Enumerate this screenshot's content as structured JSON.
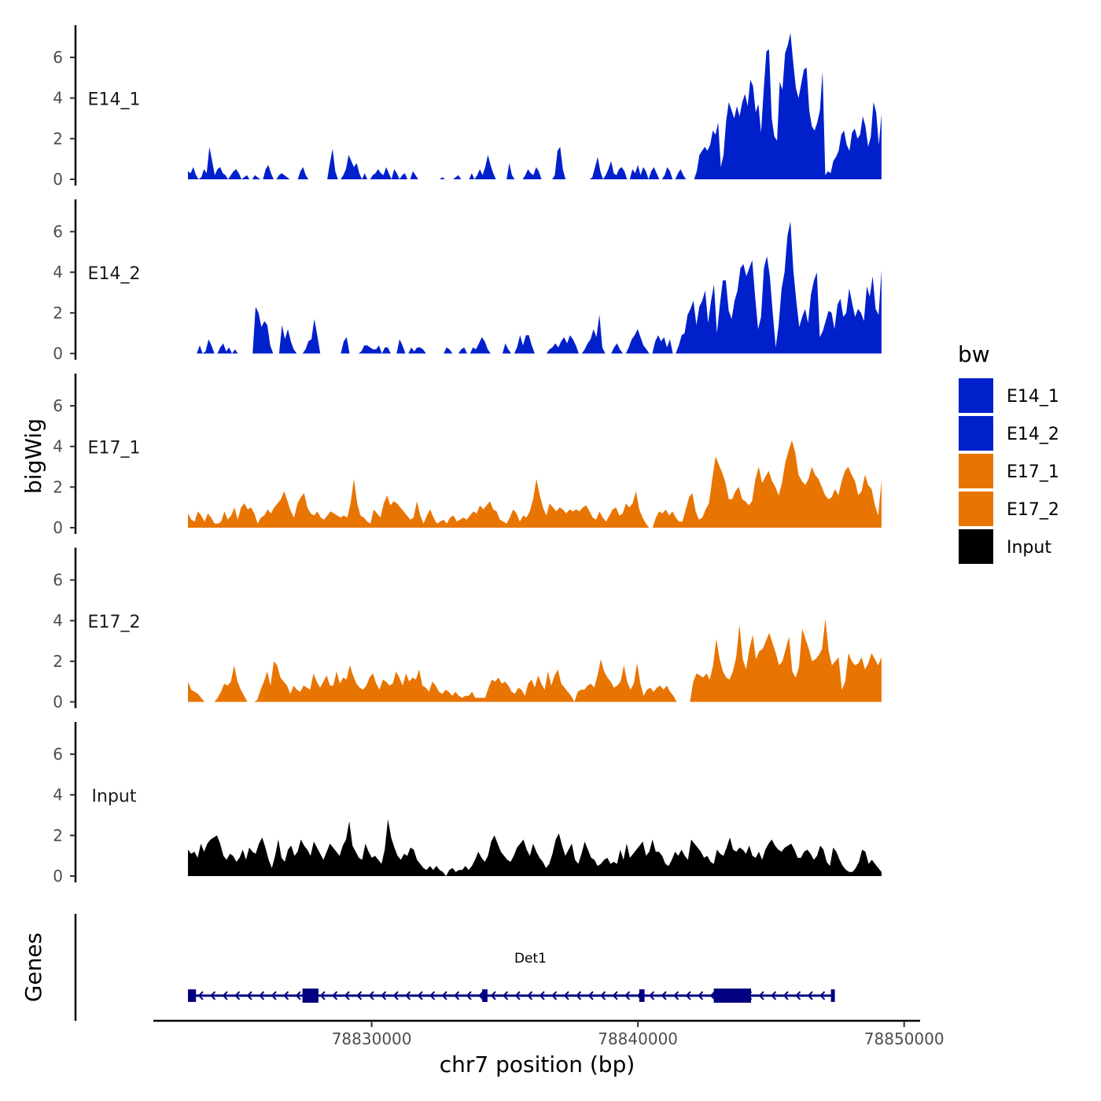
{
  "chart_data": {
    "type": "area",
    "title": "",
    "xlabel": "chr7 position (bp)",
    "ylabel": "bigWig",
    "genes_label": "Genes",
    "x_range": [
      78821800,
      78850600
    ],
    "x_ticks": [
      78830000,
      78840000,
      78850000
    ],
    "x_tick_labels": [
      "78830000",
      "78840000",
      "78850000"
    ],
    "ylim": [
      0,
      7.5
    ],
    "y_ticks": [
      0,
      2,
      4,
      6
    ],
    "y_tick_labels": [
      "0",
      "2",
      "4",
      "6"
    ],
    "track_start": 78823100,
    "track_end": 78849150,
    "legend": {
      "title": "bw",
      "entries": [
        {
          "name": "E14_1",
          "color": "#0020CC"
        },
        {
          "name": "E14_2",
          "color": "#0020CC"
        },
        {
          "name": "E17_1",
          "color": "#E87502"
        },
        {
          "name": "E17_2",
          "color": "#E87502"
        },
        {
          "name": "Input",
          "color": "#000000"
        }
      ]
    },
    "series": [
      {
        "name": "E14_1",
        "label": "E14_1",
        "color": "#0020CC",
        "values": [
          0.4,
          0.3,
          0.6,
          0.2,
          0,
          0.1,
          0.5,
          0.3,
          1.6,
          0.9,
          0.2,
          0.5,
          0.6,
          0.3,
          0.2,
          0,
          0.2,
          0.4,
          0.5,
          0.3,
          0,
          0.1,
          0.2,
          0,
          0,
          0.2,
          0.1,
          0,
          0,
          0.5,
          0.7,
          0.3,
          0,
          0,
          0.2,
          0.3,
          0.2,
          0.1,
          0,
          0,
          0,
          0,
          0.4,
          0.6,
          0.2,
          0,
          0,
          0,
          0,
          0,
          0,
          0,
          0,
          0.8,
          1.5,
          0.4,
          0,
          0,
          0.2,
          0.5,
          1.2,
          0.9,
          0.6,
          0.8,
          0.3,
          0,
          0.3,
          0,
          0,
          0.2,
          0.3,
          0.5,
          0.3,
          0.2,
          0.6,
          0.3,
          0,
          0.5,
          0.3,
          0,
          0.2,
          0.3,
          0,
          0,
          0.4,
          0.2,
          0,
          0,
          0,
          0,
          0,
          0,
          0,
          0,
          0,
          0.1,
          0,
          0,
          0,
          0,
          0.1,
          0.2,
          0,
          0,
          0,
          0,
          0.3,
          0,
          0.2,
          0.5,
          0.2,
          0.6,
          1.2,
          0.7,
          0.3,
          0,
          0,
          0,
          0,
          0,
          0.8,
          0.2,
          0,
          0,
          0,
          0,
          0.2,
          0.5,
          0.3,
          0.2,
          0.6,
          0.4,
          0,
          0,
          0,
          0,
          0,
          0.2,
          1.4,
          1.6,
          0.5,
          0,
          0,
          0,
          0,
          0,
          0,
          0,
          0,
          0,
          0,
          0.1,
          0.6,
          1.1,
          0.4,
          0,
          0.2,
          0.5,
          0.9,
          0.3,
          0.2,
          0.5,
          0.6,
          0.4,
          0,
          0,
          0.5,
          0.3,
          0.7,
          0.2,
          0.6,
          0.4,
          0,
          0.4,
          0.6,
          0.3,
          0,
          0,
          0.2,
          0.6,
          0.4,
          0,
          0,
          0.3,
          0.5,
          0.2,
          0,
          0,
          0,
          0,
          0.4,
          1.2,
          1.4,
          1.6,
          1.4,
          1.7,
          2.4,
          2.2,
          2.8,
          0.6,
          1.2,
          2.9,
          3.8,
          3.4,
          3.0,
          3.6,
          3.1,
          3.8,
          4.2,
          3.6,
          4.9,
          4.6,
          3.3,
          3.7,
          2.3,
          4.4,
          6.3,
          6.4,
          3.0,
          2.1,
          1.9,
          4.8,
          4.4,
          6.2,
          6.6,
          7.2,
          5.8,
          4.5,
          4.0,
          4.7,
          5.4,
          5.5,
          3.4,
          2.6,
          2.4,
          2.8,
          3.4,
          5.3,
          0.2,
          0.4,
          0.3,
          0.9,
          1.1,
          1.4,
          2.2,
          2.4,
          1.7,
          1.4,
          2.3,
          2.5,
          2.0,
          2.2,
          3.1,
          2.6,
          1.6,
          2.1,
          3.8,
          3.3,
          1.7,
          3.2
        ]
      },
      {
        "name": "E14_2",
        "label": "E14_2",
        "color": "#0020CC",
        "values": [
          0,
          0,
          0,
          0,
          0.4,
          0,
          0.1,
          0.7,
          0.4,
          0,
          0,
          0.3,
          0.5,
          0.1,
          0.3,
          0,
          0.2,
          0,
          0,
          0,
          0,
          0,
          0,
          2.3,
          2.0,
          1.3,
          1.6,
          1.4,
          0.4,
          0,
          0,
          0,
          1.4,
          0.7,
          1.2,
          0.6,
          0.2,
          0,
          0,
          0,
          0.2,
          0.6,
          0.7,
          1.7,
          0.9,
          0,
          0,
          0,
          0,
          0,
          0,
          0,
          0,
          0.6,
          0.8,
          0,
          0,
          0,
          0,
          0.1,
          0.4,
          0.4,
          0.3,
          0.2,
          0.2,
          0.4,
          0,
          0.3,
          0.3,
          0,
          0,
          0,
          0.7,
          0.4,
          0,
          0,
          0.3,
          0.1,
          0.3,
          0.3,
          0.2,
          0,
          0,
          0,
          0,
          0,
          0,
          0,
          0.3,
          0.2,
          0,
          0,
          0,
          0.2,
          0.3,
          0,
          0,
          0.3,
          0.2,
          0.5,
          0.8,
          0.6,
          0.2,
          0,
          0,
          0,
          0,
          0,
          0.5,
          0.2,
          0,
          0,
          0.3,
          0.9,
          0.4,
          0.9,
          0.9,
          0.4,
          0,
          0,
          0,
          0,
          0,
          0.2,
          0.3,
          0.5,
          0.3,
          0.6,
          0.8,
          0.5,
          0.9,
          0.7,
          0.4,
          0,
          0,
          0.2,
          0.5,
          0.7,
          1.2,
          0.8,
          1.9,
          0.3,
          0,
          0,
          0,
          0.3,
          0.5,
          0.2,
          0,
          0,
          0.3,
          0.7,
          0.9,
          1.2,
          0.8,
          0.4,
          0.2,
          0,
          0,
          0.6,
          0.9,
          0.6,
          0.8,
          0.3,
          0.7,
          0,
          0,
          0.4,
          0.9,
          1.0,
          1.9,
          2.2,
          2.6,
          1.4,
          2.3,
          2.6,
          3.1,
          1.5,
          2.6,
          3.4,
          1.0,
          2.4,
          3.6,
          3.6,
          2.1,
          1.7,
          2.6,
          3.1,
          4.2,
          4.4,
          3.8,
          4.2,
          4.6,
          2.8,
          1.2,
          1.8,
          4.2,
          4.8,
          3.8,
          2.0,
          0.3,
          1.4,
          3.2,
          4.0,
          5.8,
          6.5,
          4.1,
          2.6,
          1.3,
          1.8,
          2.2,
          1.5,
          2.9,
          3.6,
          4.0,
          0.8,
          1.1,
          1.6,
          2.1,
          2.0,
          1.2,
          2.4,
          2.7,
          1.8,
          2.0,
          3.2,
          2.5,
          1.8,
          2.2,
          2.0,
          1.6,
          3.3,
          2.8,
          3.8,
          2.2,
          1.9,
          4.1
        ]
      },
      {
        "name": "E17_1",
        "label": "E17_1",
        "color": "#E87502",
        "values": [
          0.7,
          0.4,
          0.3,
          0.8,
          0.6,
          0.3,
          0.7,
          0.5,
          0.2,
          0.2,
          0.3,
          0.8,
          0.4,
          0.6,
          1.0,
          0.4,
          1.0,
          1.2,
          0.9,
          1.0,
          0.7,
          0.2,
          0.5,
          0.6,
          0.9,
          0.7,
          1.0,
          1.2,
          1.4,
          1.8,
          1.3,
          0.8,
          0.5,
          1.2,
          1.5,
          1.7,
          1.0,
          0.7,
          0.6,
          0.8,
          0.5,
          0.4,
          0.6,
          0.8,
          0.7,
          0.6,
          0.5,
          0.6,
          0.5,
          1.2,
          2.4,
          1.2,
          0.6,
          0.5,
          0.3,
          0.2,
          0.9,
          0.7,
          0.5,
          1.2,
          1.6,
          1.1,
          1.3,
          1.2,
          1.0,
          0.8,
          0.6,
          0.4,
          0.5,
          1.3,
          0.6,
          0.2,
          0.6,
          0.9,
          0.5,
          0.2,
          0.3,
          0.4,
          0.2,
          0.5,
          0.6,
          0.3,
          0.4,
          0.5,
          0.4,
          0.6,
          0.8,
          0.7,
          1.1,
          0.9,
          1.1,
          1.3,
          0.9,
          0.8,
          0.4,
          0.3,
          0.2,
          0.5,
          0.9,
          0.7,
          0.3,
          0.6,
          0.5,
          0.8,
          1.4,
          2.4,
          1.6,
          1.0,
          0.6,
          1.2,
          1.0,
          0.8,
          1.0,
          0.9,
          0.7,
          0.9,
          0.8,
          0.9,
          0.8,
          1.0,
          1.1,
          0.8,
          0.5,
          0.4,
          0.8,
          0.5,
          0.3,
          0.6,
          0.9,
          1.0,
          0.6,
          0.7,
          1.2,
          1.0,
          1.2,
          1.8,
          0.9,
          0.5,
          0.2,
          0,
          0,
          0.5,
          0.8,
          0.7,
          0.9,
          0.6,
          0.8,
          0.5,
          0.3,
          0.3,
          0.9,
          1.5,
          1.7,
          0.8,
          0.4,
          0.5,
          0.9,
          1.2,
          2.4,
          3.5,
          3.1,
          2.7,
          2.2,
          1.4,
          1.4,
          1.8,
          2.0,
          1.4,
          1.3,
          1.1,
          1.3,
          2.4,
          3.0,
          2.2,
          2.5,
          2.8,
          2.3,
          2.0,
          1.6,
          2.2,
          3.2,
          3.8,
          4.3,
          3.7,
          2.6,
          2.3,
          2.1,
          2.4,
          3.0,
          2.6,
          2.4,
          2.0,
          1.6,
          1.4,
          1.5,
          1.9,
          1.6,
          2.3,
          2.8,
          3.0,
          2.6,
          2.3,
          1.6,
          1.8,
          2.6,
          2.1,
          1.9,
          1.1,
          0.6,
          2.3
        ]
      },
      {
        "name": "E17_2",
        "label": "E17_2",
        "color": "#E87502",
        "values": [
          1.0,
          0.6,
          0.5,
          0.4,
          0.2,
          0,
          0,
          0,
          0,
          0.2,
          0.5,
          0.9,
          0.8,
          1.0,
          1.8,
          1.0,
          0.6,
          0.3,
          0,
          0,
          0,
          0.1,
          0.6,
          1.0,
          1.5,
          0.8,
          2.0,
          1.8,
          1.2,
          1.0,
          0.8,
          0.4,
          0.8,
          0.6,
          0.5,
          0.8,
          0.7,
          0.6,
          1.4,
          1.0,
          0.7,
          1.0,
          1.3,
          0.8,
          0.8,
          1.5,
          0.9,
          1.2,
          1.1,
          1.8,
          1.3,
          0.9,
          0.7,
          0.6,
          0.8,
          1.2,
          1.4,
          0.9,
          0.6,
          1.1,
          1.0,
          0.8,
          0.9,
          1.5,
          1.2,
          0.8,
          1.4,
          1.0,
          1.2,
          1.1,
          1.6,
          0.8,
          0.7,
          0.5,
          1.0,
          0.8,
          0.5,
          0.4,
          0.6,
          0.5,
          0.3,
          0.5,
          0.3,
          0.2,
          0.3,
          0.3,
          0.5,
          0.2,
          0.2,
          0.2,
          0.2,
          0.7,
          1.1,
          1.0,
          1.2,
          0.9,
          1.0,
          0.8,
          0.5,
          0.4,
          0.7,
          0.6,
          0.3,
          0.9,
          1.1,
          0.7,
          1.3,
          0.9,
          0.6,
          1.5,
          0.8,
          1.3,
          1.6,
          0.9,
          0.7,
          0.5,
          0.3,
          0,
          0.5,
          0.6,
          0.6,
          0.8,
          0.9,
          0.7,
          1.3,
          2.1,
          1.5,
          1.2,
          1.0,
          0.7,
          0.8,
          1.0,
          1.8,
          1.0,
          0.6,
          0.9,
          1.9,
          0.9,
          0.3,
          0.6,
          0.7,
          0.5,
          0.7,
          0.8,
          0.6,
          0.8,
          0.5,
          0.3,
          0,
          0,
          0,
          0,
          0,
          1.0,
          1.4,
          1.3,
          1.2,
          1.4,
          1.1,
          1.8,
          3.1,
          2.1,
          1.5,
          1.2,
          1.1,
          1.5,
          2.2,
          3.8,
          2.1,
          1.6,
          2.6,
          3.3,
          2.1,
          2.5,
          2.6,
          3.0,
          3.4,
          2.9,
          2.4,
          1.8,
          2.0,
          2.6,
          3.2,
          1.5,
          1.2,
          1.7,
          3.6,
          3.1,
          2.6,
          2.0,
          2.1,
          2.3,
          2.6,
          4.1,
          2.5,
          1.8,
          2.0,
          2.2,
          0.6,
          1.0,
          2.4,
          2.0,
          1.8,
          1.9,
          2.2,
          1.6,
          1.9,
          2.4,
          2.1,
          1.8,
          2.2
        ]
      },
      {
        "name": "Input",
        "label": "Input",
        "color": "#000000",
        "values": [
          1.3,
          1.1,
          1.2,
          0.9,
          1.6,
          1.2,
          1.6,
          1.8,
          1.9,
          2.0,
          1.6,
          1.0,
          0.8,
          1.1,
          1.0,
          0.7,
          0.9,
          1.3,
          0.8,
          1.4,
          1.2,
          1.1,
          1.6,
          1.9,
          1.4,
          0.8,
          0.4,
          1.0,
          1.8,
          0.9,
          0.7,
          1.3,
          1.5,
          1.0,
          1.2,
          1.8,
          1.5,
          1.3,
          1.0,
          1.7,
          1.4,
          1.1,
          0.8,
          1.2,
          1.6,
          1.4,
          1.2,
          1.0,
          1.5,
          1.8,
          2.7,
          1.5,
          1.2,
          0.9,
          0.8,
          1.6,
          1.2,
          0.9,
          1.0,
          0.8,
          0.6,
          1.3,
          2.8,
          1.9,
          1.4,
          1.0,
          0.8,
          1.1,
          1.0,
          1.4,
          1.3,
          0.8,
          0.6,
          0.4,
          0.3,
          0.5,
          0.3,
          0.5,
          0.3,
          0.2,
          0,
          0.3,
          0.4,
          0.2,
          0.3,
          0.3,
          0.5,
          0.3,
          0.5,
          0.8,
          1.2,
          0.9,
          0.7,
          1.0,
          1.7,
          2.0,
          1.6,
          1.2,
          1.0,
          0.8,
          0.7,
          1.0,
          1.4,
          1.6,
          1.8,
          1.3,
          1.0,
          1.6,
          1.2,
          0.9,
          0.7,
          0.4,
          0.6,
          1.1,
          1.8,
          2.1,
          1.5,
          1.0,
          1.3,
          1.6,
          0.8,
          0.6,
          1.1,
          1.7,
          1.3,
          0.9,
          0.8,
          0.5,
          0.6,
          0.8,
          0.9,
          0.6,
          0.7,
          0.6,
          1.3,
          0.8,
          1.6,
          0.9,
          1.1,
          1.3,
          1.5,
          1.7,
          1.0,
          1.2,
          1.8,
          1.2,
          1.2,
          1.0,
          0.6,
          0.5,
          0.8,
          1.2,
          1.0,
          1.3,
          1.0,
          0.8,
          1.8,
          1.6,
          1.4,
          1.2,
          0.9,
          1.0,
          0.7,
          0.6,
          1.3,
          1.1,
          1.0,
          1.4,
          1.9,
          1.3,
          1.2,
          1.4,
          1.3,
          1.1,
          1.5,
          1.0,
          0.9,
          1.2,
          0.8,
          1.3,
          1.6,
          1.8,
          1.5,
          1.3,
          1.2,
          1.4,
          1.5,
          1.6,
          1.3,
          0.9,
          0.9,
          1.2,
          1.3,
          1.1,
          0.8,
          1.0,
          1.5,
          1.3,
          0.7,
          0.5,
          1.4,
          1.2,
          0.8,
          0.5,
          0.3,
          0.2,
          0.2,
          0.4,
          0.7,
          1.3,
          1.2,
          0.6,
          0.8,
          0.6,
          0.4,
          0.2
        ]
      }
    ],
    "gene": {
      "name": "Det1",
      "strand": "-",
      "start": 78823100,
      "end": 78847350,
      "color": "#000080",
      "exons": [
        {
          "start": 78823100,
          "end": 78823400,
          "thick": false
        },
        {
          "start": 78827400,
          "end": 78828000,
          "thick": true
        },
        {
          "start": 78834150,
          "end": 78834350,
          "thick": false
        },
        {
          "start": 78840050,
          "end": 78840250,
          "thick": false
        },
        {
          "start": 78842850,
          "end": 78844250,
          "thick": true
        },
        {
          "start": 78847250,
          "end": 78847350,
          "thick": false
        }
      ]
    }
  }
}
